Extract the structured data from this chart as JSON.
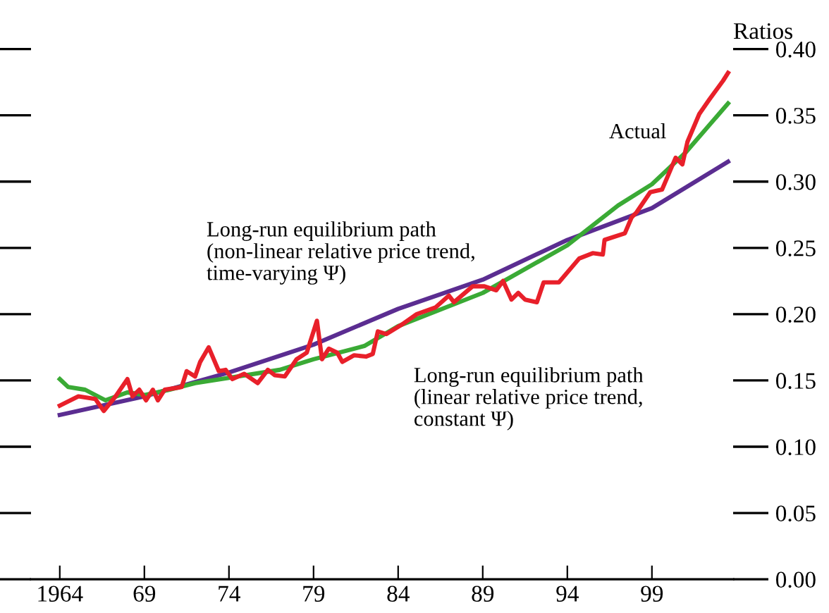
{
  "chart_data": {
    "type": "line",
    "ylabel": "Ratios",
    "xlim": [
      1962.3,
      2003.8
    ],
    "ylim": [
      0,
      0.4
    ],
    "xticks": [
      1964,
      {
        "value": 1969,
        "label": "69"
      },
      {
        "value": 1974,
        "label": "74"
      },
      {
        "value": 1979,
        "label": "79"
      },
      {
        "value": 1984,
        "label": "84"
      },
      {
        "value": 1989,
        "label": "89"
      },
      {
        "value": 1994,
        "label": "94"
      },
      {
        "value": 1999,
        "label": "99"
      }
    ],
    "yticks": [
      {
        "value": 0,
        "label": "0.00"
      },
      0.05,
      {
        "value": 0.1,
        "label": "0.10"
      },
      0.15,
      {
        "value": 0.2,
        "label": "0.20"
      },
      0.25,
      {
        "value": 0.3,
        "label": "0.30"
      },
      0.35,
      {
        "value": 0.4,
        "label": "0.40"
      }
    ],
    "grid": false,
    "legend": false,
    "marker": "none",
    "line_style": "solid",
    "series": [
      {
        "name": "Long-run equilibrium path\n(non-linear relative price trend,\ntime-varying Ψ)",
        "color": "#5b2d91",
        "x": [
          1964,
          1969,
          1974,
          1979,
          1984,
          1989,
          1994,
          1999,
          2003.5
        ],
        "values": [
          0.124,
          0.138,
          0.156,
          0.177,
          0.204,
          0.226,
          0.256,
          0.28,
          0.315
        ]
      },
      {
        "name": "Long-run equilibrium path\n(linear relative price trend,\nconstant Ψ)",
        "color": "#3aaa35",
        "x": [
          1964,
          1964.5,
          1965.5,
          1966.7,
          1968,
          1969,
          1970.5,
          1972,
          1974,
          1977,
          1979,
          1982,
          1984,
          1989,
          1994,
          1997,
          1999,
          2001,
          2003.5
        ],
        "values": [
          0.151,
          0.145,
          0.143,
          0.135,
          0.141,
          0.139,
          0.143,
          0.148,
          0.152,
          0.158,
          0.166,
          0.176,
          0.191,
          0.216,
          0.252,
          0.282,
          0.298,
          0.322,
          0.359
        ]
      },
      {
        "name": "Actual",
        "color": "#e8202a",
        "x": [
          1964.0,
          1965.1,
          1966.1,
          1966.6,
          1967.3,
          1968.0,
          1968.3,
          1968.7,
          1969.1,
          1969.5,
          1969.8,
          1970.2,
          1971.2,
          1971.5,
          1972.0,
          1972.3,
          1972.8,
          1973.4,
          1973.8,
          1974.2,
          1974.9,
          1975.7,
          1976.3,
          1976.7,
          1977.3,
          1978.0,
          1978.6,
          1979.2,
          1979.5,
          1979.9,
          1980.4,
          1980.7,
          1981.4,
          1982.1,
          1982.5,
          1982.8,
          1983.3,
          1984.2,
          1985.1,
          1986.2,
          1987.0,
          1987.3,
          1988.4,
          1989.1,
          1989.8,
          1990.2,
          1990.7,
          1991.1,
          1991.5,
          1992.2,
          1992.6,
          1993.5,
          1994.7,
          1995.5,
          1996.1,
          1996.2,
          1997.4,
          1997.8,
          1998.1,
          1998.9,
          1999.6,
          2000.4,
          2000.8,
          2001.1,
          2001.8,
          2002.4,
          2003.2,
          2003.5
        ],
        "values": [
          0.131,
          0.138,
          0.136,
          0.127,
          0.138,
          0.151,
          0.138,
          0.143,
          0.135,
          0.143,
          0.135,
          0.143,
          0.145,
          0.157,
          0.153,
          0.164,
          0.175,
          0.157,
          0.158,
          0.151,
          0.155,
          0.148,
          0.158,
          0.154,
          0.153,
          0.166,
          0.171,
          0.195,
          0.166,
          0.174,
          0.171,
          0.164,
          0.169,
          0.168,
          0.17,
          0.187,
          0.185,
          0.192,
          0.2,
          0.205,
          0.214,
          0.209,
          0.221,
          0.221,
          0.218,
          0.225,
          0.211,
          0.216,
          0.211,
          0.209,
          0.224,
          0.224,
          0.242,
          0.246,
          0.245,
          0.256,
          0.261,
          0.273,
          0.277,
          0.292,
          0.294,
          0.318,
          0.313,
          0.33,
          0.351,
          0.362,
          0.376,
          0.382
        ]
      }
    ]
  }
}
